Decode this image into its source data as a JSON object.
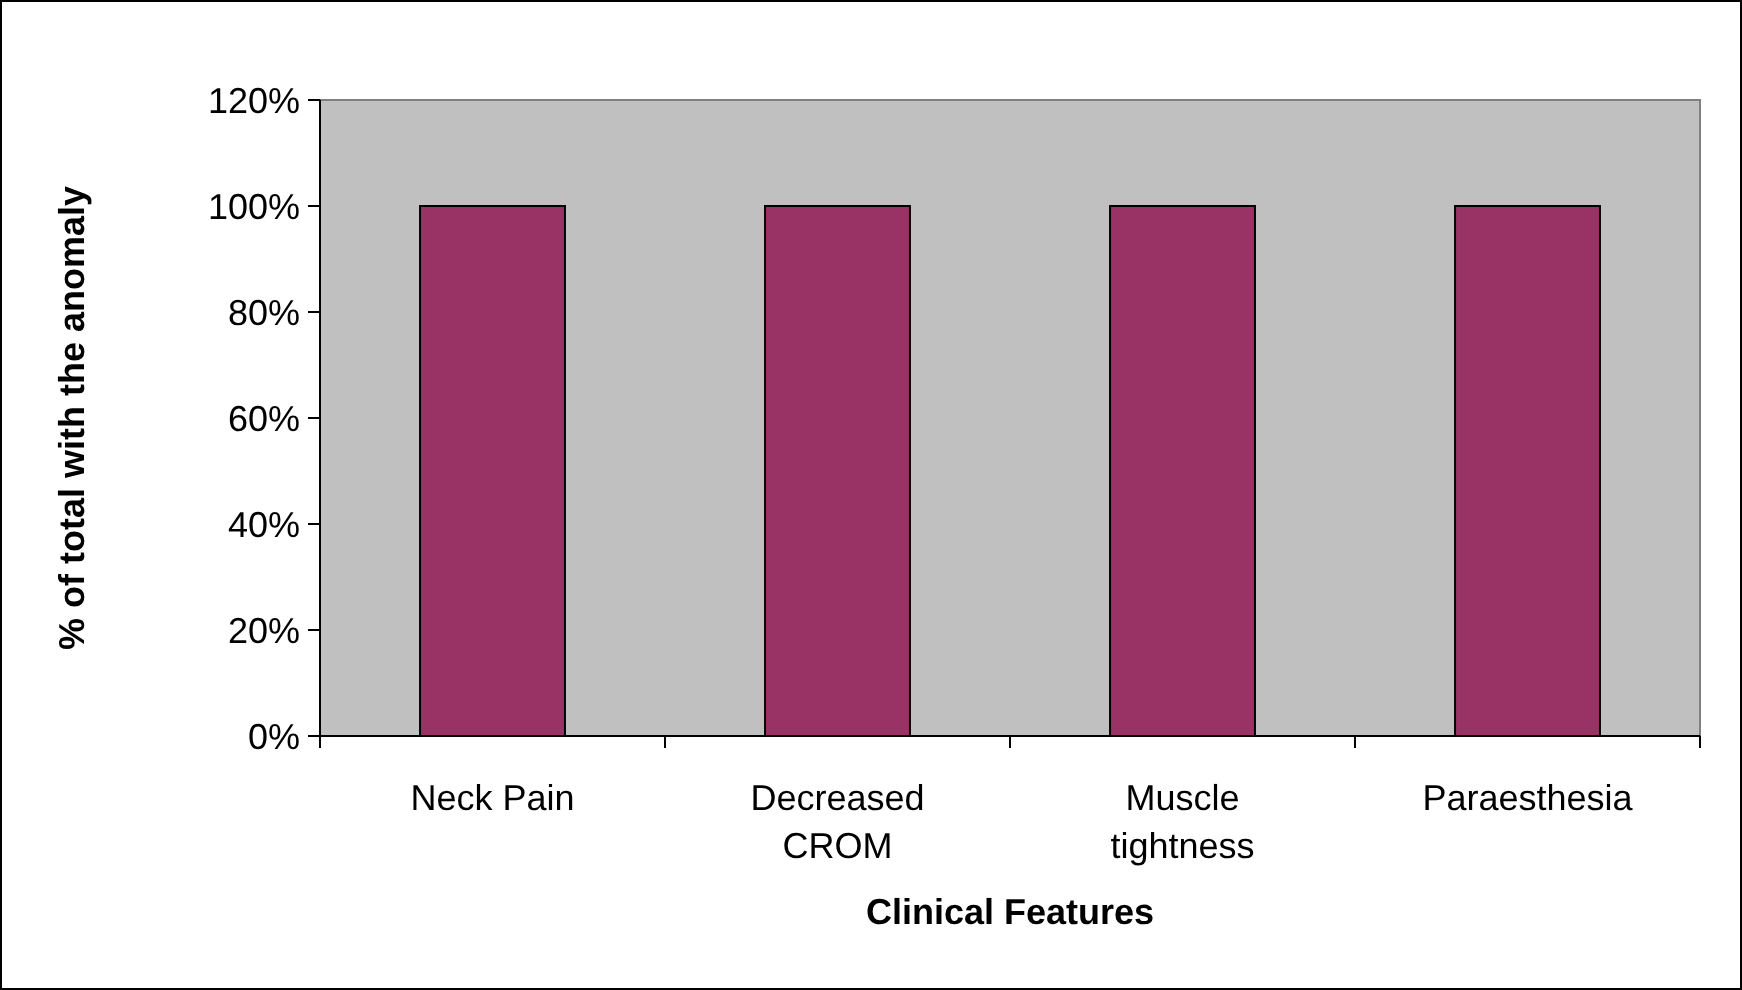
{
  "chart_data": {
    "type": "bar",
    "xlabel": "Clinical Features",
    "ylabel": "% of total with the anomaly",
    "categories": [
      "Neck Pain",
      "Decreased CROM",
      "Muscle tightness",
      "Paraesthesia"
    ],
    "values": [
      100,
      100,
      100,
      100
    ],
    "color": "#993366",
    "ylim": [
      0,
      120
    ],
    "yticks": [
      {
        "value": 0,
        "label": "0%"
      },
      {
        "value": 20,
        "label": "20%"
      },
      {
        "value": 40,
        "label": "40%"
      },
      {
        "value": 60,
        "label": "60%"
      },
      {
        "value": 80,
        "label": "80%"
      },
      {
        "value": 100,
        "label": "100%"
      },
      {
        "value": 120,
        "label": "120%"
      }
    ]
  }
}
